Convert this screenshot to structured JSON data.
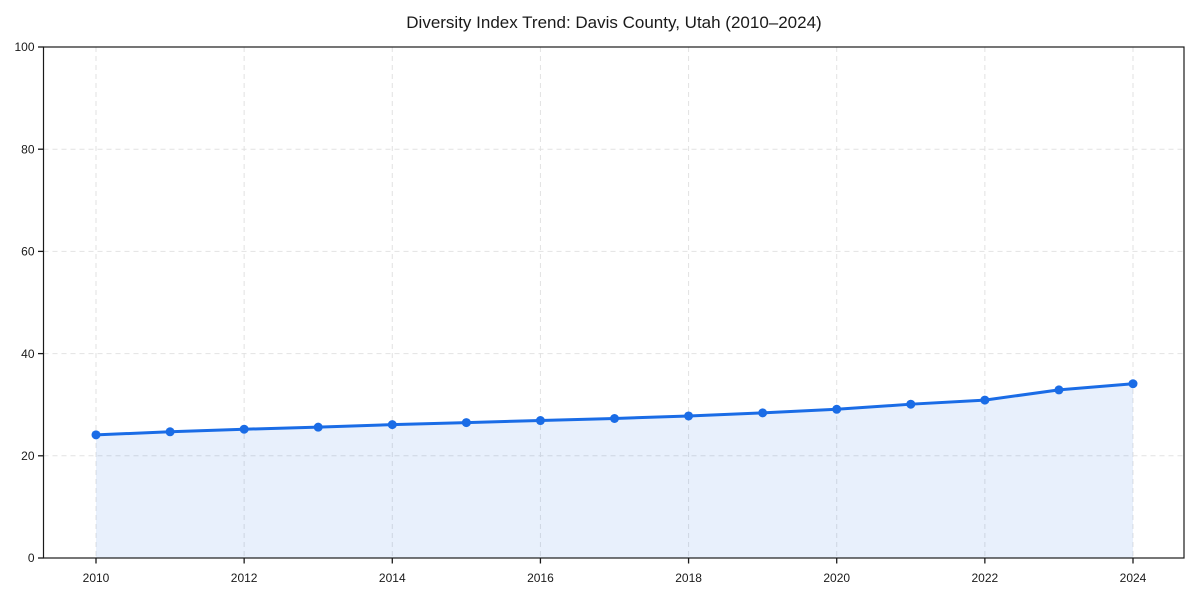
{
  "page": {
    "background": "#ffffff"
  },
  "chart_data": {
    "type": "line",
    "title": "Diversity Index Trend: Davis County, Utah (2010–2024)",
    "xlabel": "",
    "ylabel": "",
    "x": [
      2010,
      2011,
      2012,
      2013,
      2014,
      2015,
      2016,
      2017,
      2018,
      2019,
      2020,
      2021,
      2022,
      2023,
      2024
    ],
    "series": [
      {
        "name": "Diversity Index",
        "values": [
          24.1,
          24.7,
          25.2,
          25.6,
          26.1,
          26.5,
          26.9,
          27.3,
          27.8,
          28.4,
          29.1,
          30.1,
          30.9,
          32.9,
          34.1
        ]
      }
    ],
    "xticks": [
      2010,
      2012,
      2014,
      2016,
      2018,
      2020,
      2022,
      2024
    ],
    "yticks": [
      0,
      20,
      40,
      60,
      80,
      100
    ],
    "ylim": [
      0,
      100
    ],
    "grid": true,
    "grid_style": "dashed",
    "legend": false,
    "area_fill": true,
    "marker": "circle",
    "colors": {
      "line": "#1a6ce6",
      "marker": "#1a6ce6",
      "fill": "rgba(26,108,230,0.10)",
      "grid": "#e2e2e2",
      "axis": "#1a1a1a",
      "tick_label": "#1a1a1a",
      "title": "#1a1a1a"
    }
  }
}
